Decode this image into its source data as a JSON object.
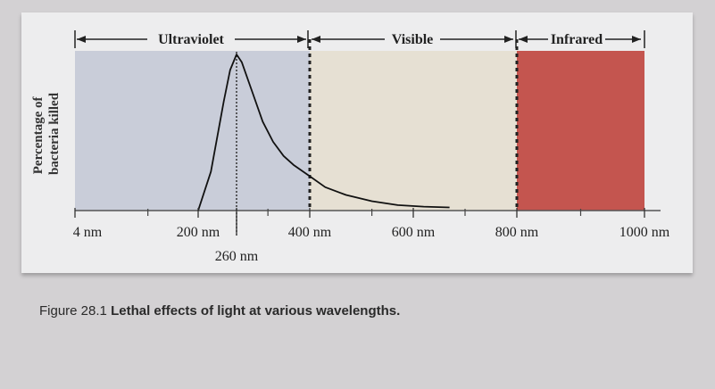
{
  "chart_data": {
    "type": "line",
    "title": "",
    "ylabel": [
      "Percentage of",
      "bacteria killed"
    ],
    "xlabel": "",
    "x_ticks": [
      {
        "value": 4,
        "label": "4 nm"
      },
      {
        "value": 200,
        "label": "200 nm"
      },
      {
        "value": 260,
        "label": "260 nm"
      },
      {
        "value": 400,
        "label": "400 nm"
      },
      {
        "value": 600,
        "label": "600 nm"
      },
      {
        "value": 800,
        "label": "800 nm"
      },
      {
        "value": 1000,
        "label": "1000 nm"
      }
    ],
    "regions": [
      {
        "name": "Ultraviolet",
        "from": 4,
        "to": 400,
        "color": "#c9cdd9"
      },
      {
        "name": "Visible",
        "from": 400,
        "to": 800,
        "color": "#e6e0d3"
      },
      {
        "name": "Infrared",
        "from": 800,
        "to": 1000,
        "color": "#c4554f"
      }
    ],
    "boundaries": [
      400,
      800
    ],
    "series": [
      {
        "values_percent": [
          [
            200,
            0
          ],
          [
            220,
            25
          ],
          [
            240,
            70
          ],
          [
            250,
            90
          ],
          [
            260,
            100
          ],
          [
            270,
            95
          ],
          [
            290,
            76
          ],
          [
            310,
            57
          ],
          [
            330,
            44
          ],
          [
            350,
            35
          ],
          [
            370,
            29
          ],
          [
            400,
            22
          ],
          [
            430,
            15
          ],
          [
            470,
            10
          ],
          [
            520,
            6
          ],
          [
            570,
            3.5
          ],
          [
            620,
            2.5
          ],
          [
            670,
            2
          ]
        ]
      }
    ]
  },
  "caption": {
    "number": "Figure 28.1",
    "text": "Lethal effects of light at various wavelengths."
  }
}
